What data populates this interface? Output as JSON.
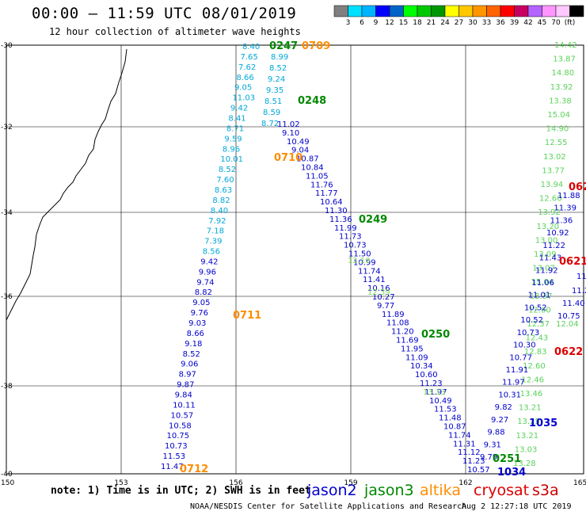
{
  "header": {
    "title": "00:00 – 11:59 UTC 08/01/2019",
    "subtitle": "12 hour collection of altimeter wave heights"
  },
  "colorbar": {
    "swatches": [
      "#808080",
      "#00e0ff",
      "#00b4ff",
      "#0000ff",
      "#0064c8",
      "#00ff00",
      "#00c800",
      "#009600",
      "#ffff00",
      "#ffc800",
      "#ff9600",
      "#ff6400",
      "#ff0000",
      "#c80064",
      "#b464ff",
      "#ff96ff",
      "#ffc8ff",
      "#000000"
    ],
    "labels": [
      "3",
      "6",
      "9",
      "12",
      "15",
      "18",
      "21",
      "24",
      "27",
      "30",
      "33",
      "36",
      "39",
      "42",
      "45",
      "70",
      "(ft)"
    ]
  },
  "axes": {
    "lat_labels": [
      "-30",
      "-32",
      "-34",
      "-36",
      "-38",
      "-40"
    ],
    "lon_labels": [
      "150",
      "153",
      "156",
      "159",
      "162",
      "165"
    ]
  },
  "satellites": [
    {
      "name": "jason2",
      "color": "#0000cc"
    },
    {
      "name": "jason3",
      "color": "#008800"
    },
    {
      "name": "altika",
      "color": "#ff8c00"
    },
    {
      "name": "cryosat",
      "color": "#dd0000"
    },
    {
      "name": "s3a",
      "color": "#cc0000"
    }
  ],
  "time_labels": [
    {
      "text": "0247",
      "color": "#008800"
    },
    {
      "text": "0709",
      "color": "#ff8c00"
    },
    {
      "text": "0248",
      "color": "#008800"
    },
    {
      "text": "0710",
      "color": "#ff8c00"
    },
    {
      "text": "0249",
      "color": "#008800"
    },
    {
      "text": "0711",
      "color": "#ff8c00"
    },
    {
      "text": "0250",
      "color": "#008800"
    },
    {
      "text": "0712",
      "color": "#ff8c00"
    },
    {
      "text": "0251",
      "color": "#008800"
    },
    {
      "text": "1034",
      "color": "#0000cc"
    },
    {
      "text": "1035",
      "color": "#0000cc"
    },
    {
      "text": "0621",
      "color": "#dd0000"
    },
    {
      "text": "0622",
      "color": "#dd0000"
    },
    {
      "text": "062",
      "color": "#dd0000"
    }
  ],
  "tracks": {
    "track_a_left": {
      "values_cyan": [
        "8.40",
        "7.65",
        "7.62",
        "8.66",
        "9.05",
        "11.03",
        "9.42",
        "8.41",
        "8.71",
        "9.59",
        "8.96",
        "10.01",
        "8.52",
        "7.60",
        "8.63",
        "8.82",
        "8.40",
        "7.92",
        "7.18",
        "7.39",
        "8.56"
      ],
      "values_blue": [
        "9.42",
        "9.96",
        "9.74",
        "8.82",
        "9.05",
        "9.76",
        "9.03",
        "8.66",
        "9.18",
        "8.52",
        "9.06",
        "8.97",
        "9.87",
        "9.84",
        "10.11",
        "10.57",
        "10.58",
        "10.75",
        "10.73",
        "11.53",
        "11.47"
      ]
    },
    "track_a_right_cyan": [
      "8.99",
      "8.52",
      "9.24",
      "9.35",
      "8.51",
      "8.59",
      "8.72"
    ],
    "track_b": [
      "11.02",
      "9.10",
      "10.49",
      "9.04",
      "10.87",
      "10.84",
      "11.05",
      "11.76",
      "11.77",
      "10.64",
      "11.30",
      "11.36",
      "11.99",
      "11.73",
      "10.73",
      "11.50",
      "10.99",
      "11.74",
      "11.41",
      "10.16",
      "10.27",
      "9.77",
      "11.89",
      "11.08",
      "11.20",
      "11.69",
      "11.95",
      "11.09",
      "10.34",
      "10.60",
      "11.23",
      "11.97",
      "10.49",
      "11.53",
      "11.48",
      "10.87",
      "11.74",
      "11.31",
      "11.12",
      "11.23",
      "10.57"
    ],
    "track_b_green": [
      "12.10",
      "12.39",
      "13.13"
    ],
    "track_c_green": [
      "14.42",
      "13.87",
      "14.80",
      "13.92",
      "13.38",
      "15.04",
      "14.90",
      "12.55",
      "13.02",
      "13.77",
      "13.94",
      "12.60",
      "13.92",
      "13.20",
      "13.00",
      "13.09",
      "13.07",
      "15.04",
      "13.37",
      "12.60",
      "12.37",
      "12.43",
      "12.83",
      "12.60",
      "12.46",
      "13.46",
      "13.21",
      "13.25",
      "13.21",
      "13.03",
      "13.28"
    ],
    "track_c_blue": [
      "11.88",
      "11.39",
      "11.36",
      "10.92",
      "11.22",
      "11.43",
      "11.92",
      "11.06",
      "11.01",
      "10.52",
      "10.52",
      "10.73",
      "10.30",
      "10.77",
      "11.91",
      "11.97",
      "10.31",
      "9.82",
      "9.27",
      "9.88",
      "9.31",
      "9.79"
    ],
    "track_d": [
      "11.4",
      "11.21",
      "11.40",
      "10.75",
      "12.04"
    ]
  },
  "footer": {
    "note": "note: 1) Time is in UTC; 2) SWH is in feet",
    "credit": "NOAA/NESDIS Center for Satellite Applications and Research",
    "timestamp": "Aug  2 12:27:18 UTC 2019"
  }
}
